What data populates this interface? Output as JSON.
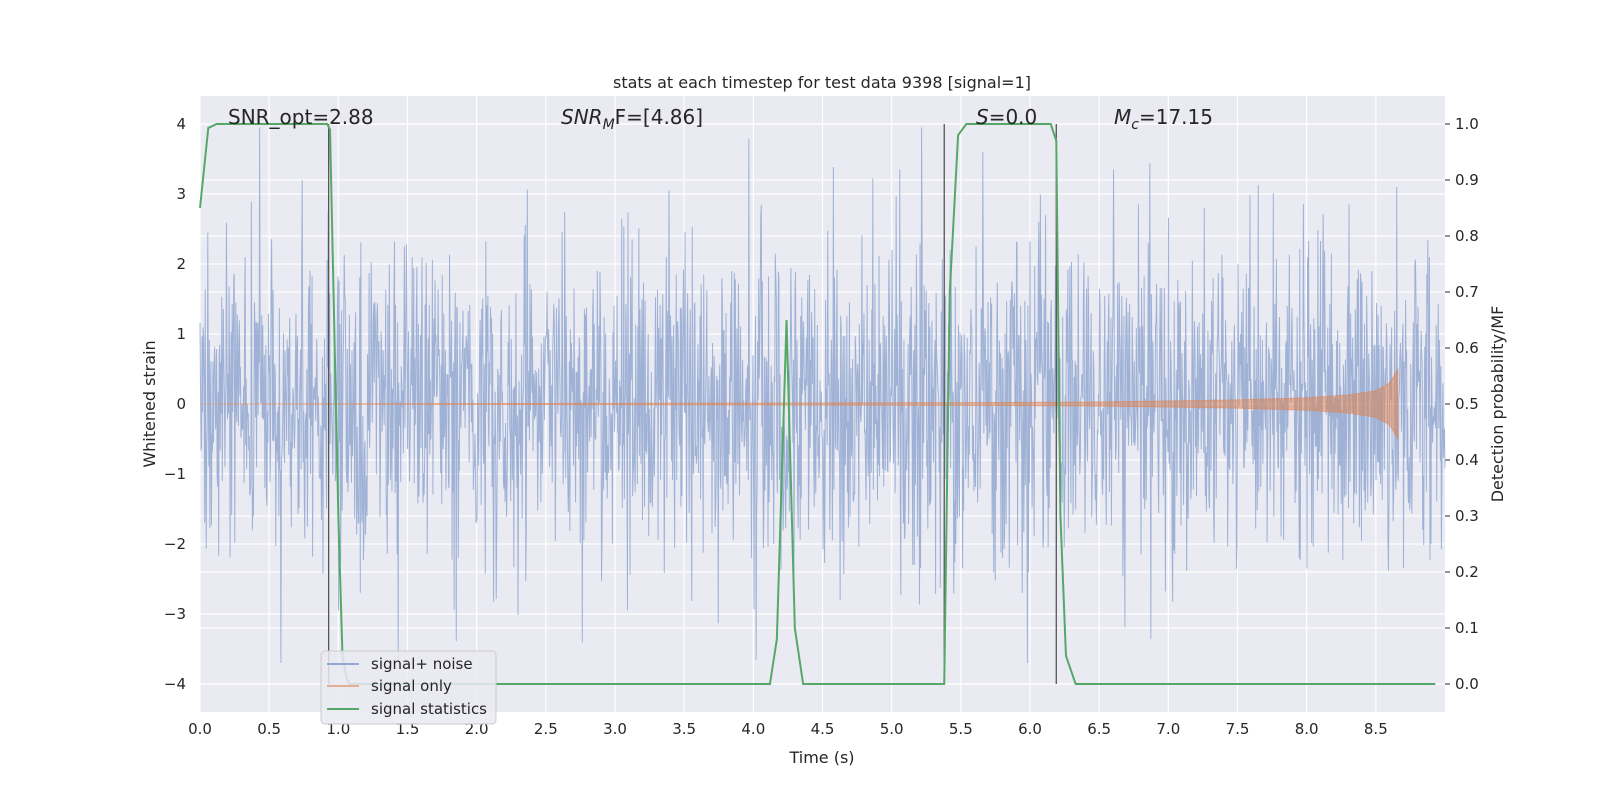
{
  "chart_data": {
    "type": "line",
    "title": "stats at each timestep for test data 9398 [signal=1]",
    "xlabel": "Time (s)",
    "ylabel_left": "Whitened strain",
    "ylabel_right": "Detection probability/MF",
    "xlim": [
      0.0,
      9.0
    ],
    "ylim_left": [
      -4.4,
      4.4
    ],
    "ylim_right": [
      -0.05,
      1.05
    ],
    "xticks": [
      "0.0",
      "0.5",
      "1.0",
      "1.5",
      "2.0",
      "2.5",
      "3.0",
      "3.5",
      "4.0",
      "4.5",
      "5.0",
      "5.5",
      "6.0",
      "6.5",
      "7.0",
      "7.5",
      "8.0",
      "8.5"
    ],
    "yticks_left": [
      "−4",
      "−3",
      "−2",
      "−1",
      "0",
      "1",
      "2",
      "3",
      "4"
    ],
    "yticks_right": [
      "0.0",
      "0.1",
      "0.2",
      "0.3",
      "0.4",
      "0.5",
      "0.6",
      "0.7",
      "0.8",
      "0.9",
      "1.0"
    ],
    "grid": true,
    "legend_placement": "lower-left",
    "annotations": {
      "snr_opt": "SNR_opt=2.88",
      "snr_mf_main": "SNR",
      "snr_mf_sub": "M",
      "snr_mf_rest": "F=[4.86]",
      "s_main": "S",
      "s_rest": "=0.0",
      "mc_main": "M",
      "mc_sub": "c",
      "mc_rest": "=17.15"
    },
    "series": [
      {
        "name": "signal+ noise",
        "color": "#92a8d1",
        "description_of_values": "whitened noisy strain, roughly Gaussian noise spanning about -3.7 to 3.9 across 0 to 9 s"
      },
      {
        "name": "signal only",
        "color": "#dd8452",
        "envelope": {
          "x": [
            0.0,
            5.5,
            6.5,
            7.5,
            8.0,
            8.3,
            8.5,
            8.6,
            8.66
          ],
          "amp": [
            0.0,
            0.02,
            0.03,
            0.06,
            0.09,
            0.13,
            0.19,
            0.3,
            0.5
          ]
        }
      },
      {
        "name": "signal statistics",
        "color": "#55a868",
        "x": [
          0.0,
          0.06,
          0.12,
          0.92,
          0.94,
          1.0,
          1.03,
          1.06,
          1.08,
          4.12,
          4.17,
          4.24,
          4.3,
          4.36,
          5.38,
          5.42,
          5.48,
          5.54,
          6.15,
          6.19,
          6.22,
          6.26,
          6.33,
          8.93
        ],
        "y": [
          0.85,
          0.993,
          1.0,
          1.0,
          0.99,
          0.3,
          0.05,
          0.01,
          0.0,
          0.0,
          0.08,
          0.65,
          0.1,
          0.0,
          0.0,
          0.7,
          0.98,
          1.0,
          1.0,
          0.97,
          0.3,
          0.05,
          0.0,
          0.0
        ]
      }
    ],
    "vertical_lines_x": [
      0.93,
      5.38,
      6.19
    ]
  }
}
